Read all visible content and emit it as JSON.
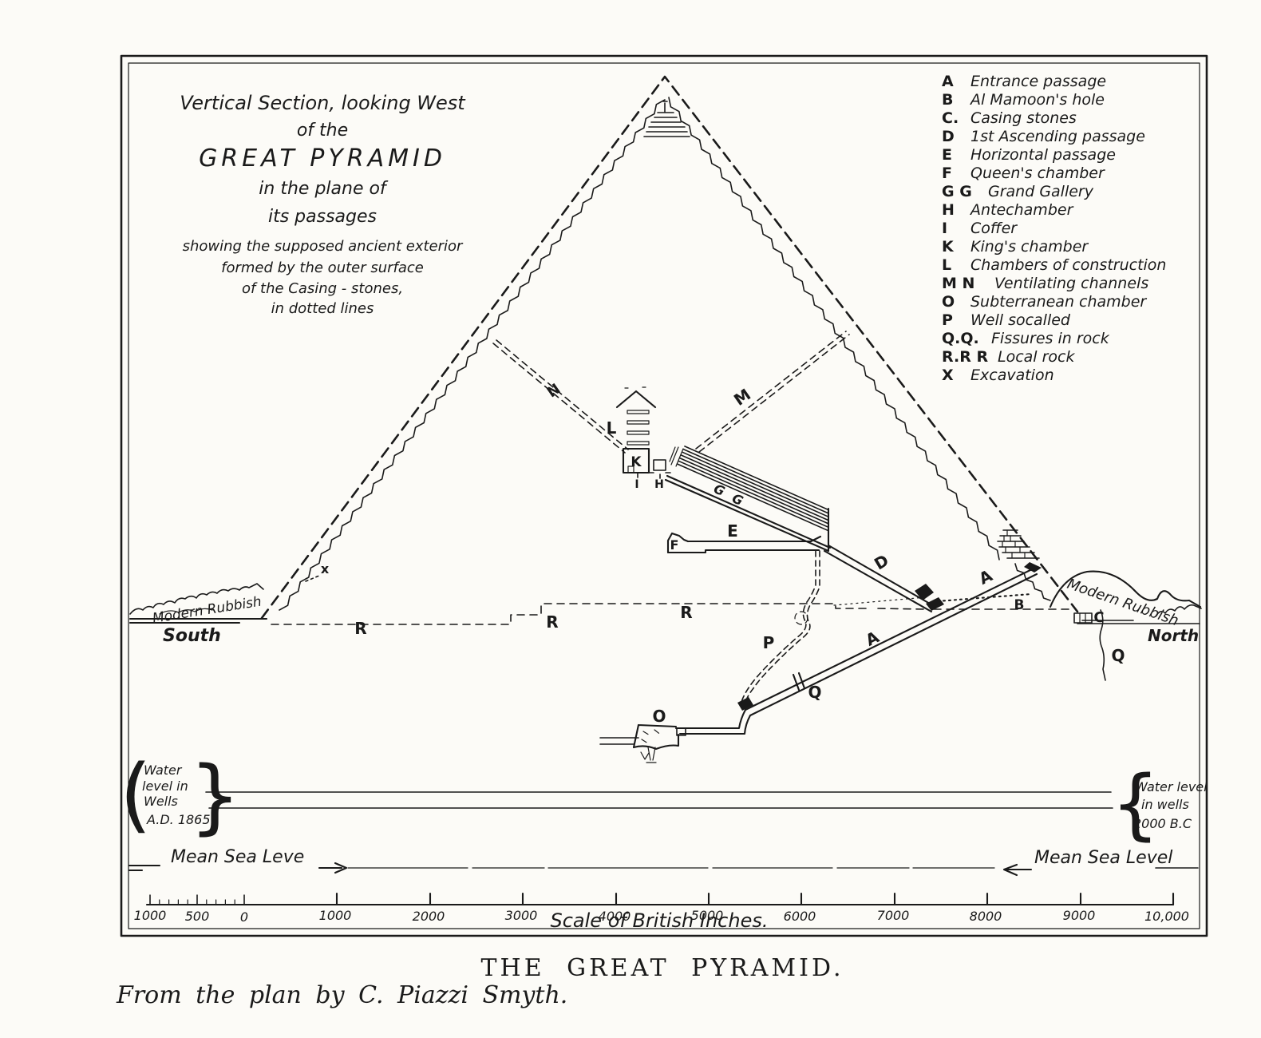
{
  "title_block": {
    "line1": "Vertical Section, looking West",
    "line2": "of the",
    "line3": "GREAT PYRAMID",
    "line4": "in the plane of",
    "line5": "its passages",
    "line6": "showing the supposed ancient exterior",
    "line7": "formed by the outer surface",
    "line8": "of the Casing - stones,",
    "line9": "in dotted lines"
  },
  "legend": {
    "items": [
      {
        "key": "A",
        "label": "Entrance passage"
      },
      {
        "key": "B",
        "label": "Al Mamoon's hole"
      },
      {
        "key": "C.",
        "label": "Casing stones"
      },
      {
        "key": "D",
        "label": "1st Ascending passage"
      },
      {
        "key": "E",
        "label": "Horizontal passage"
      },
      {
        "key": "F",
        "label": "Queen's chamber"
      },
      {
        "key": "G G",
        "label": "Grand Gallery"
      },
      {
        "key": "H",
        "label": "Antechamber"
      },
      {
        "key": "I",
        "label": "Coffer"
      },
      {
        "key": "K",
        "label": "King's chamber"
      },
      {
        "key": "L",
        "label": "Chambers of construction"
      },
      {
        "key": "M N",
        "label": "Ventilating channels"
      },
      {
        "key": "O",
        "label": "Subterranean chamber"
      },
      {
        "key": "P",
        "label": "Well socalled"
      },
      {
        "key": "Q.Q.",
        "label": "Fissures in rock"
      },
      {
        "key": "R.R R",
        "label": "Local rock"
      },
      {
        "key": "X",
        "label": "Excavation"
      }
    ]
  },
  "labels": {
    "A": "A",
    "B": "B",
    "C": "C",
    "D": "D",
    "E": "E",
    "F": "F",
    "G": "G",
    "H": "H",
    "I": "I",
    "K": "K",
    "L": "L",
    "M": "M",
    "N": "N",
    "O": "O",
    "P": "P",
    "Q": "Q",
    "R": "R",
    "x_mark": "x",
    "south": "South",
    "north": "North",
    "modern_rubbish": "Modern Rubbish"
  },
  "water_levels": {
    "left": {
      "brace_open": "(",
      "brace_close": "}",
      "l1": "Water",
      "l2": "level in",
      "l3": "Wells",
      "l4": "A.D. 1865"
    },
    "right": {
      "brace": "{",
      "l1": "Water level",
      "l2": "in wells",
      "l3": "2000 B.C"
    }
  },
  "sea_level": {
    "left": "Mean Sea Leve",
    "right": "Mean Sea Level"
  },
  "scale_bar": {
    "title": "Scale of British Inches.",
    "labels": [
      "1000",
      "500",
      "0",
      "1000",
      "2000",
      "3000",
      "4000",
      "5000",
      "6000",
      "7000",
      "8000",
      "9000",
      "10,000"
    ]
  },
  "caption": {
    "title": "THE GREAT PYRAMID.",
    "byline": "From the plan by C. Piazzi Smyth."
  }
}
